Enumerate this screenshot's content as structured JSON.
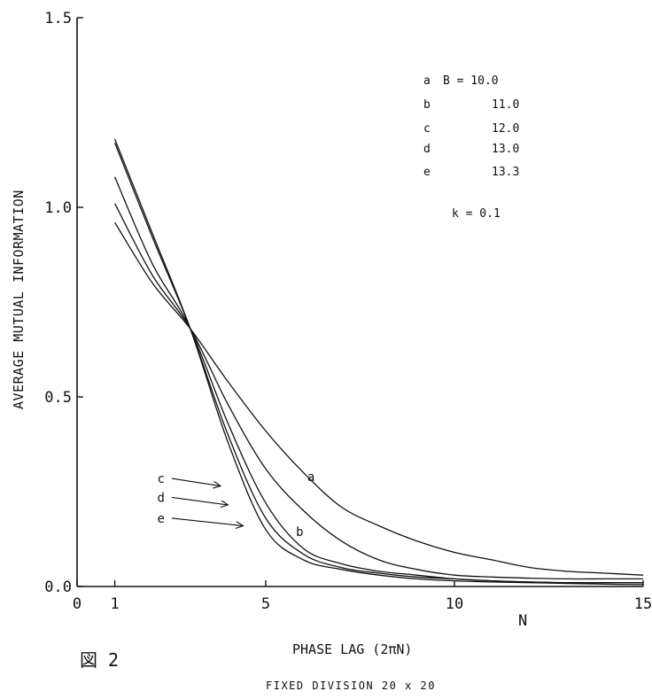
{
  "chart_data": {
    "type": "line",
    "xlabel": "PHASE LAG  (2πN)",
    "x_axis_unit_label": "N",
    "ylabel": "AVERAGE MUTUAL INFORMATION",
    "xlim": [
      0,
      15
    ],
    "ylim": [
      0,
      1.5
    ],
    "x_ticks": [
      0,
      1,
      5,
      10,
      15
    ],
    "x_tick_labels": [
      "0",
      "1",
      "5",
      "10",
      "15"
    ],
    "y_ticks": [
      0,
      0.5,
      1.0,
      1.5
    ],
    "y_tick_labels": [
      "0.0",
      "0.5",
      "1.0",
      "1.5"
    ],
    "figure_label": "図 2",
    "footer": "FIXED DIVISION 20 x 20",
    "legend": {
      "entries": [
        {
          "key": "a",
          "text": "B = 10.0"
        },
        {
          "key": "b",
          "text": "11.0"
        },
        {
          "key": "c",
          "text": "12.0"
        },
        {
          "key": "d",
          "text": "13.0"
        },
        {
          "key": "e",
          "text": "13.3"
        }
      ],
      "param": "k = 0.1"
    },
    "series": [
      {
        "name": "a",
        "x": [
          1,
          2,
          3,
          4,
          5,
          6,
          7,
          8,
          9,
          10,
          11,
          12,
          13,
          14,
          15
        ],
        "values": [
          0.96,
          0.8,
          0.68,
          0.54,
          0.41,
          0.3,
          0.21,
          0.16,
          0.12,
          0.09,
          0.07,
          0.05,
          0.04,
          0.035,
          0.03
        ]
      },
      {
        "name": "b",
        "x": [
          1,
          2,
          3,
          4,
          5,
          6,
          7,
          8,
          9,
          10,
          11,
          12,
          13,
          14,
          15
        ],
        "values": [
          1.01,
          0.82,
          0.68,
          0.48,
          0.31,
          0.2,
          0.12,
          0.07,
          0.045,
          0.03,
          0.025,
          0.022,
          0.02,
          0.02,
          0.02
        ]
      },
      {
        "name": "c",
        "x": [
          1,
          2,
          3,
          4,
          5,
          6,
          7,
          8,
          9,
          10,
          11,
          12,
          13,
          14,
          15
        ],
        "values": [
          1.08,
          0.85,
          0.68,
          0.43,
          0.22,
          0.1,
          0.06,
          0.04,
          0.03,
          0.02,
          0.015,
          0.012,
          0.01,
          0.01,
          0.01
        ]
      },
      {
        "name": "d",
        "x": [
          1,
          2,
          3,
          4,
          5,
          6,
          7,
          8,
          9,
          10,
          11,
          12,
          13,
          14,
          15
        ],
        "values": [
          1.17,
          0.92,
          0.68,
          0.4,
          0.18,
          0.085,
          0.05,
          0.035,
          0.025,
          0.02,
          0.015,
          0.012,
          0.01,
          0.01,
          0.01
        ]
      },
      {
        "name": "e",
        "x": [
          1,
          2,
          3,
          4,
          5,
          6,
          7,
          8,
          9,
          10,
          11,
          12,
          13,
          14,
          15
        ],
        "values": [
          1.18,
          0.93,
          0.68,
          0.38,
          0.15,
          0.07,
          0.045,
          0.03,
          0.02,
          0.015,
          0.012,
          0.01,
          0.008,
          0.006,
          0.005
        ]
      }
    ],
    "annotations": [
      {
        "label": "a",
        "x": 6.1,
        "y": 0.29
      },
      {
        "label": "b",
        "x": 5.8,
        "y": 0.145
      },
      {
        "label": "c",
        "target_x": 3.8,
        "target_y": 0.265,
        "text_x": 2.65,
        "text_y": 0.285
      },
      {
        "label": "d",
        "target_x": 4.0,
        "target_y": 0.215,
        "text_x": 2.65,
        "text_y": 0.235
      },
      {
        "label": "e",
        "target_x": 4.4,
        "target_y": 0.16,
        "text_x": 2.65,
        "text_y": 0.18
      }
    ]
  }
}
